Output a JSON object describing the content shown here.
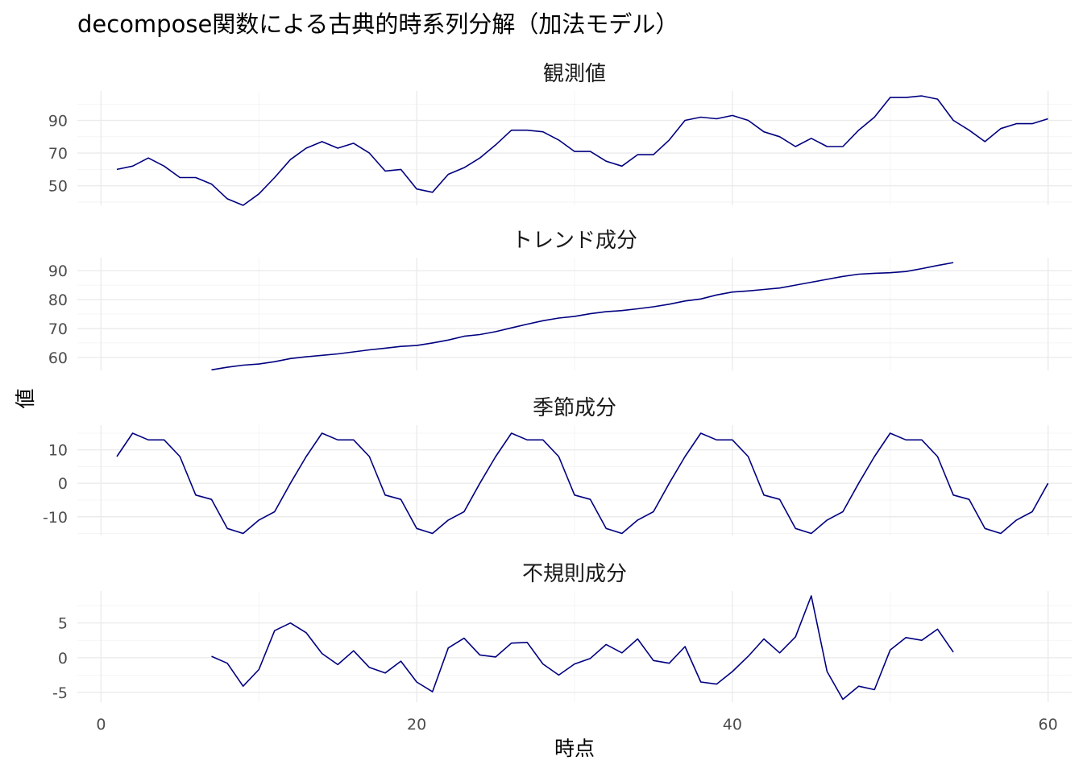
{
  "chart_data": {
    "type": "line",
    "title": "decompose関数による古典的時系列分解（加法モデル）",
    "xlabel": "時点",
    "ylabel": "値",
    "xlim": [
      -1.5,
      61.5
    ],
    "x_ticks": [
      0,
      20,
      40,
      60
    ],
    "line_color": "#000080",
    "grid": true,
    "facets": [
      {
        "name": "観測値",
        "ylim": [
          38,
          108
        ],
        "y_ticks": [
          50,
          70,
          90
        ],
        "x": [
          1,
          2,
          3,
          4,
          5,
          6,
          7,
          8,
          9,
          10,
          11,
          12,
          13,
          14,
          15,
          16,
          17,
          18,
          19,
          20,
          21,
          22,
          23,
          24,
          25,
          26,
          27,
          28,
          29,
          30,
          31,
          32,
          33,
          34,
          35,
          36,
          37,
          38,
          39,
          40,
          41,
          42,
          43,
          44,
          45,
          46,
          47,
          48,
          49,
          50,
          51,
          52,
          53,
          54,
          55,
          56,
          57,
          58,
          59,
          60
        ],
        "values": [
          60,
          62,
          67,
          62,
          55,
          55,
          51,
          42,
          38,
          45,
          55,
          66,
          73,
          77,
          73,
          76,
          70,
          59,
          60,
          48,
          46,
          57,
          61,
          67,
          75,
          84,
          84,
          83,
          78,
          71,
          71,
          65,
          62,
          69,
          69,
          78,
          90,
          92,
          91,
          93,
          90,
          83,
          80,
          74,
          79,
          74,
          74,
          84,
          92,
          104,
          104,
          105,
          103,
          90,
          84,
          77,
          85,
          88,
          88,
          91
        ]
      },
      {
        "name": "トレンド成分",
        "ylim": [
          55.5,
          94.5
        ],
        "y_ticks": [
          60,
          70,
          80,
          90
        ],
        "x": [
          7,
          8,
          9,
          10,
          11,
          12,
          13,
          14,
          15,
          16,
          17,
          18,
          19,
          20,
          21,
          22,
          23,
          24,
          25,
          26,
          27,
          28,
          29,
          30,
          31,
          32,
          33,
          34,
          35,
          36,
          37,
          38,
          39,
          40,
          41,
          42,
          43,
          44,
          45,
          46,
          47,
          48,
          49,
          50,
          51,
          52,
          53,
          54
        ],
        "values": [
          55.7,
          56.6,
          57.3,
          57.7,
          58.5,
          59.6,
          60.2,
          60.7,
          61.2,
          61.9,
          62.6,
          63.2,
          63.8,
          64.1,
          65.0,
          66.0,
          67.3,
          67.9,
          68.9,
          70.2,
          71.5,
          72.7,
          73.6,
          74.2,
          75.1,
          75.8,
          76.2,
          76.8,
          77.5,
          78.4,
          79.5,
          80.2,
          81.6,
          82.6,
          83.0,
          83.5,
          84.0,
          85.0,
          86.0,
          87.0,
          88.0,
          88.8,
          89.1,
          89.3,
          89.7,
          90.7,
          91.8,
          92.8
        ]
      },
      {
        "name": "季節成分",
        "ylim": [
          -15.6,
          17.4
        ],
        "y_ticks": [
          -10,
          0,
          10
        ],
        "x": [
          1,
          2,
          3,
          4,
          5,
          6,
          7,
          8,
          9,
          10,
          11,
          12,
          13,
          14,
          15,
          16,
          17,
          18,
          19,
          20,
          21,
          22,
          23,
          24,
          25,
          26,
          27,
          28,
          29,
          30,
          31,
          32,
          33,
          34,
          35,
          36,
          37,
          38,
          39,
          40,
          41,
          42,
          43,
          44,
          45,
          46,
          47,
          48,
          49,
          50,
          51,
          52,
          53,
          54,
          55,
          56,
          57,
          58,
          59,
          60
        ],
        "values": [
          8,
          15,
          13,
          13,
          8,
          -3.5,
          -4.8,
          -13.5,
          -15,
          -11,
          -8.5,
          0,
          8,
          15,
          13,
          13,
          8,
          -3.5,
          -4.8,
          -13.5,
          -15,
          -11,
          -8.5,
          0,
          8,
          15,
          13,
          13,
          8,
          -3.5,
          -4.8,
          -13.5,
          -15,
          -11,
          -8.5,
          0,
          8,
          15,
          13,
          13,
          8,
          -3.5,
          -4.8,
          -13.5,
          -15,
          -11,
          -8.5,
          0,
          8,
          15,
          13,
          13,
          8,
          -3.5,
          -4.8,
          -13.5,
          -15,
          -11,
          -8.5,
          0
        ]
      },
      {
        "name": "不規則成分",
        "ylim": [
          -6.4,
          9.6
        ],
        "y_ticks": [
          -5,
          0,
          5
        ],
        "x": [
          7,
          8,
          9,
          10,
          11,
          12,
          13,
          14,
          15,
          16,
          17,
          18,
          19,
          20,
          21,
          22,
          23,
          24,
          25,
          26,
          27,
          28,
          29,
          30,
          31,
          32,
          33,
          34,
          35,
          36,
          37,
          38,
          39,
          40,
          41,
          42,
          43,
          44,
          45,
          46,
          47,
          48,
          49,
          50,
          51,
          52,
          53,
          54
        ],
        "values": [
          0.2,
          -0.8,
          -4.1,
          -1.7,
          3.9,
          5.0,
          3.6,
          0.6,
          -1.0,
          1.0,
          -1.4,
          -2.2,
          -0.5,
          -3.5,
          -4.9,
          1.4,
          2.8,
          0.4,
          0.1,
          2.1,
          2.2,
          -0.9,
          -2.5,
          -0.9,
          -0.1,
          1.9,
          0.7,
          2.7,
          -0.4,
          -0.8,
          1.6,
          -3.5,
          -3.8,
          -2.0,
          0.2,
          2.7,
          0.7,
          3.0,
          8.9,
          -2.0,
          -6.0,
          -4.1,
          -4.6,
          1.1,
          2.9,
          2.5,
          4.1,
          0.8
        ]
      }
    ]
  }
}
